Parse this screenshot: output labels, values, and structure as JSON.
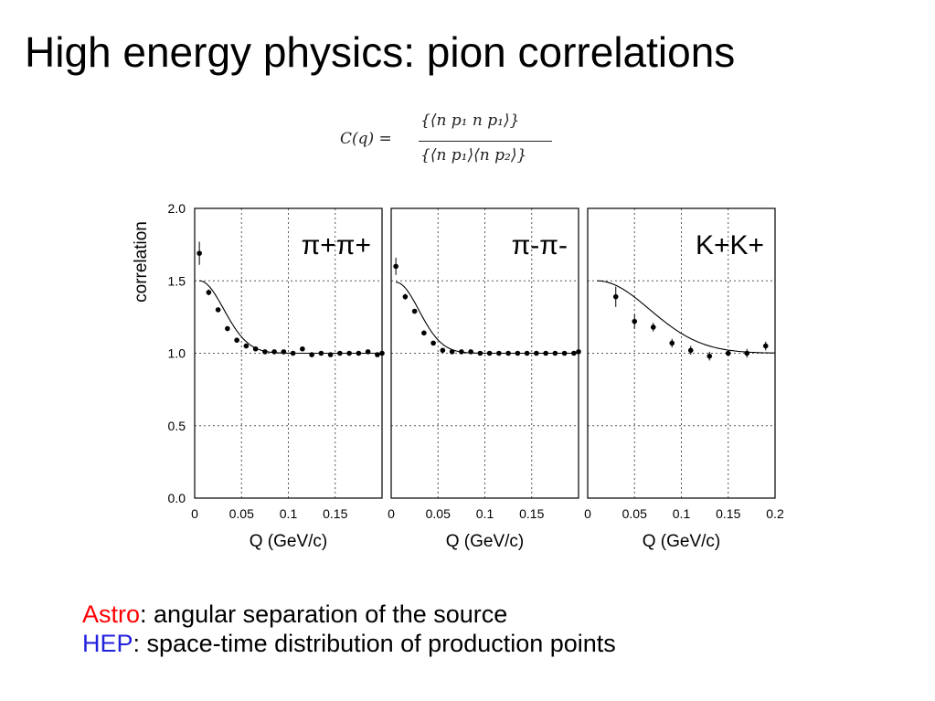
{
  "slide": {
    "title": "High energy physics: pion correlations",
    "formula": {
      "lhs": "C(q) =",
      "numerator": "{⟨n p₁ n p₁⟩}",
      "denominator": "{⟨n p₁⟩⟨n p₂⟩}"
    },
    "captions": [
      {
        "key": "Astro",
        "text": ": angular separation of the source",
        "key_color": "#ff0000"
      },
      {
        "key": "HEP",
        "text": ": space-time distribution of production points",
        "key_color": "#2222dd"
      }
    ]
  },
  "chart_data": [
    {
      "type": "scatter",
      "panel_label": "π+π+",
      "ylabel": "correlation",
      "xlabel": "Q (GeV/c)",
      "xlim": [
        0,
        0.2
      ],
      "ylim": [
        0,
        2.0
      ],
      "xticks": [
        "0",
        "0.05",
        "0.1",
        "0.15"
      ],
      "yticks": [
        "0.0",
        "0.5",
        "1.0",
        "1.5",
        "2.0"
      ],
      "grid": true,
      "points": [
        {
          "x": 0.005,
          "y": 1.69,
          "err": 0.08
        },
        {
          "x": 0.015,
          "y": 1.42,
          "err": 0.02
        },
        {
          "x": 0.025,
          "y": 1.3,
          "err": 0.01
        },
        {
          "x": 0.035,
          "y": 1.17,
          "err": 0.01
        },
        {
          "x": 0.045,
          "y": 1.09,
          "err": 0.01
        },
        {
          "x": 0.055,
          "y": 1.05,
          "err": 0.01
        },
        {
          "x": 0.065,
          "y": 1.03,
          "err": 0.01
        },
        {
          "x": 0.075,
          "y": 1.01,
          "err": 0.01
        },
        {
          "x": 0.085,
          "y": 1.01,
          "err": 0.01
        },
        {
          "x": 0.095,
          "y": 1.01,
          "err": 0.01
        },
        {
          "x": 0.105,
          "y": 1.0,
          "err": 0.01
        },
        {
          "x": 0.115,
          "y": 1.03,
          "err": 0.01
        },
        {
          "x": 0.125,
          "y": 0.99,
          "err": 0.01
        },
        {
          "x": 0.135,
          "y": 1.0,
          "err": 0.01
        },
        {
          "x": 0.145,
          "y": 0.99,
          "err": 0.01
        },
        {
          "x": 0.155,
          "y": 1.0,
          "err": 0.01
        },
        {
          "x": 0.165,
          "y": 1.0,
          "err": 0.01
        },
        {
          "x": 0.175,
          "y": 1.0,
          "err": 0.01
        },
        {
          "x": 0.185,
          "y": 1.01,
          "err": 0.01
        },
        {
          "x": 0.195,
          "y": 0.99,
          "err": 0.01
        },
        {
          "x": 0.2,
          "y": 1.0,
          "err": 0.01
        }
      ],
      "fit": {
        "x0": 0.005,
        "amplitude": 0.5,
        "width": 0.035
      }
    },
    {
      "type": "scatter",
      "panel_label": "π-π-",
      "xlabel": "Q (GeV/c)",
      "xlim": [
        0,
        0.2
      ],
      "ylim": [
        0,
        2.0
      ],
      "xticks": [
        "0",
        "0.05",
        "0.1",
        "0.15"
      ],
      "grid": true,
      "points": [
        {
          "x": 0.005,
          "y": 1.6,
          "err": 0.06
        },
        {
          "x": 0.015,
          "y": 1.39,
          "err": 0.02
        },
        {
          "x": 0.025,
          "y": 1.29,
          "err": 0.01
        },
        {
          "x": 0.035,
          "y": 1.14,
          "err": 0.01
        },
        {
          "x": 0.045,
          "y": 1.07,
          "err": 0.01
        },
        {
          "x": 0.055,
          "y": 1.02,
          "err": 0.01
        },
        {
          "x": 0.065,
          "y": 1.01,
          "err": 0.01
        },
        {
          "x": 0.075,
          "y": 1.01,
          "err": 0.01
        },
        {
          "x": 0.085,
          "y": 1.01,
          "err": 0.01
        },
        {
          "x": 0.095,
          "y": 1.0,
          "err": 0.01
        },
        {
          "x": 0.105,
          "y": 1.0,
          "err": 0.01
        },
        {
          "x": 0.115,
          "y": 1.0,
          "err": 0.01
        },
        {
          "x": 0.125,
          "y": 1.0,
          "err": 0.01
        },
        {
          "x": 0.135,
          "y": 1.0,
          "err": 0.01
        },
        {
          "x": 0.145,
          "y": 1.0,
          "err": 0.01
        },
        {
          "x": 0.155,
          "y": 1.0,
          "err": 0.01
        },
        {
          "x": 0.165,
          "y": 1.0,
          "err": 0.01
        },
        {
          "x": 0.175,
          "y": 1.0,
          "err": 0.01
        },
        {
          "x": 0.185,
          "y": 1.0,
          "err": 0.01
        },
        {
          "x": 0.195,
          "y": 1.0,
          "err": 0.01
        },
        {
          "x": 0.2,
          "y": 1.01,
          "err": 0.01
        }
      ],
      "fit": {
        "x0": 0.005,
        "amplitude": 0.49,
        "width": 0.033
      }
    },
    {
      "type": "scatter",
      "panel_label": "K+K+",
      "xlabel": "Q (GeV/c)",
      "xlim": [
        0,
        0.2
      ],
      "ylim": [
        0,
        2.0
      ],
      "xticks": [
        "0",
        "0.05",
        "0.1",
        "0.15",
        "0.2"
      ],
      "grid": true,
      "points": [
        {
          "x": 0.03,
          "y": 1.39,
          "err": 0.07
        },
        {
          "x": 0.05,
          "y": 1.22,
          "err": 0.05
        },
        {
          "x": 0.07,
          "y": 1.18,
          "err": 0.03
        },
        {
          "x": 0.09,
          "y": 1.07,
          "err": 0.03
        },
        {
          "x": 0.11,
          "y": 1.02,
          "err": 0.03
        },
        {
          "x": 0.13,
          "y": 0.98,
          "err": 0.03
        },
        {
          "x": 0.15,
          "y": 1.0,
          "err": 0.02
        },
        {
          "x": 0.17,
          "y": 1.0,
          "err": 0.03
        },
        {
          "x": 0.19,
          "y": 1.05,
          "err": 0.03
        }
      ],
      "fit": {
        "x0": 0.01,
        "amplitude": 0.5,
        "width": 0.075
      }
    }
  ]
}
